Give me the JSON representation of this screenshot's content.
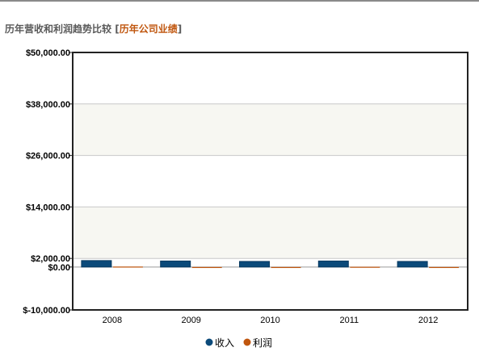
{
  "header": {
    "title": "历年营收和利润趋势比较",
    "link_open": "[",
    "link_label": "历年公司业绩",
    "link_close": "]"
  },
  "chart_data": {
    "type": "bar",
    "categories": [
      "2008",
      "2009",
      "2010",
      "2011",
      "2012"
    ],
    "series": [
      {
        "name": "收入",
        "color": "#0b4a7a",
        "values": [
          1500,
          1400,
          1300,
          1400,
          1300
        ]
      },
      {
        "name": "利润",
        "color": "#c0560e",
        "values": [
          100,
          0,
          0,
          50,
          0
        ]
      }
    ],
    "ylim": [
      -10000,
      50000
    ],
    "y_ticks": [
      {
        "value": -10000,
        "label": "$-10,000.00"
      },
      {
        "value": 0,
        "label": "$0.00"
      },
      {
        "value": 2000,
        "label": "$2,000.00"
      },
      {
        "value": 14000,
        "label": "$14,000.00"
      },
      {
        "value": 26000,
        "label": "$26,000.00"
      },
      {
        "value": 38000,
        "label": "$38,000.00"
      },
      {
        "value": 50000,
        "label": "$50,000.00"
      }
    ],
    "grid": true,
    "legend_position": "bottom-center",
    "colors": {
      "band": "#f7f7f2",
      "grid": "#c8c8c8",
      "frame": "#222222"
    }
  }
}
